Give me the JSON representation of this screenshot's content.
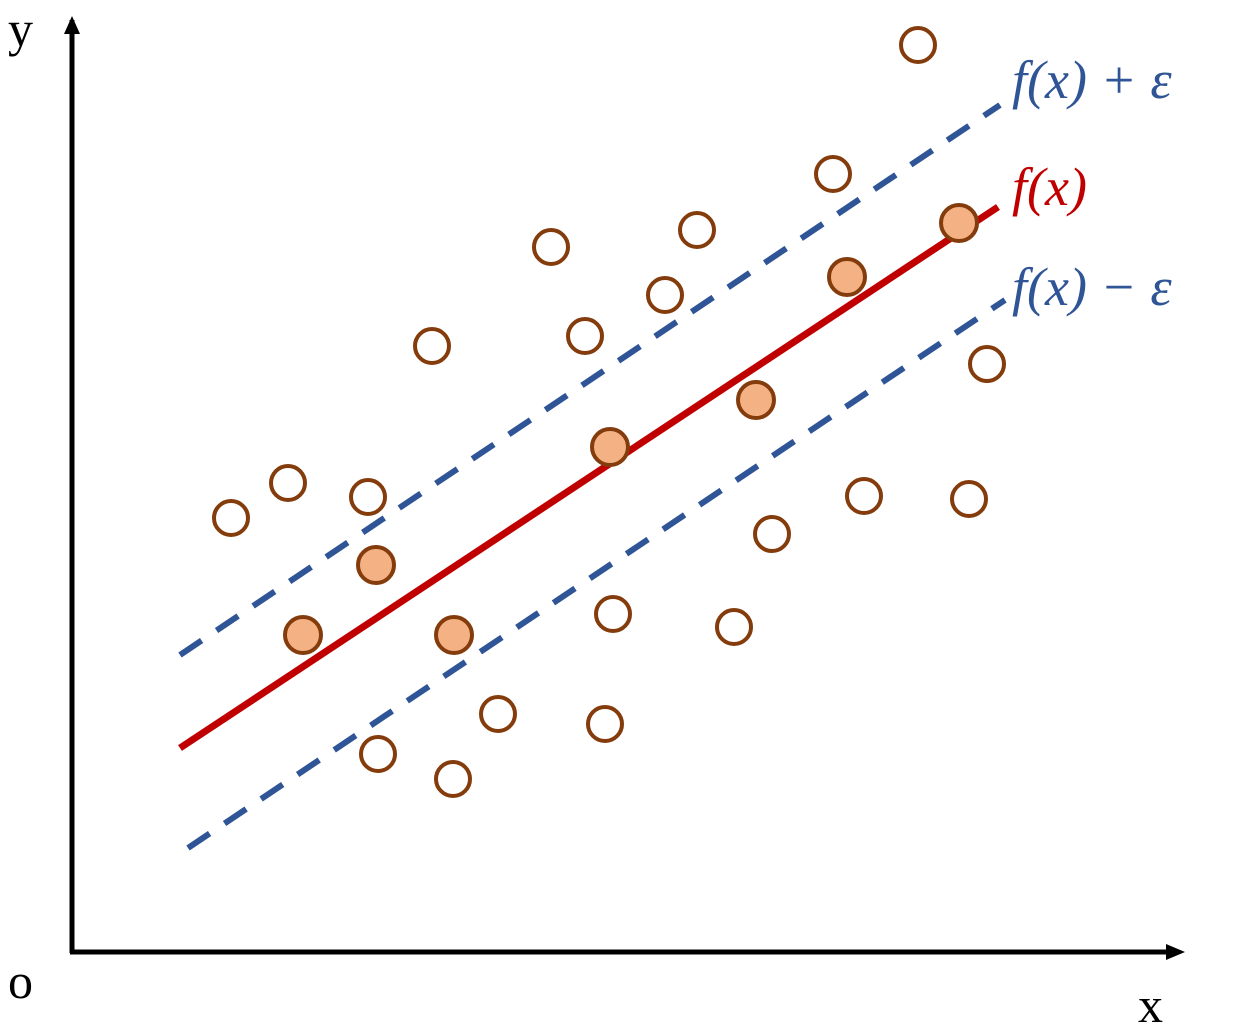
{
  "axes": {
    "y_label": "y",
    "origin": "o",
    "x_label": "x"
  },
  "lines": {
    "upper": "f(x) + ε",
    "center": "f(x)",
    "lower": "f(x) − ε"
  }
}
